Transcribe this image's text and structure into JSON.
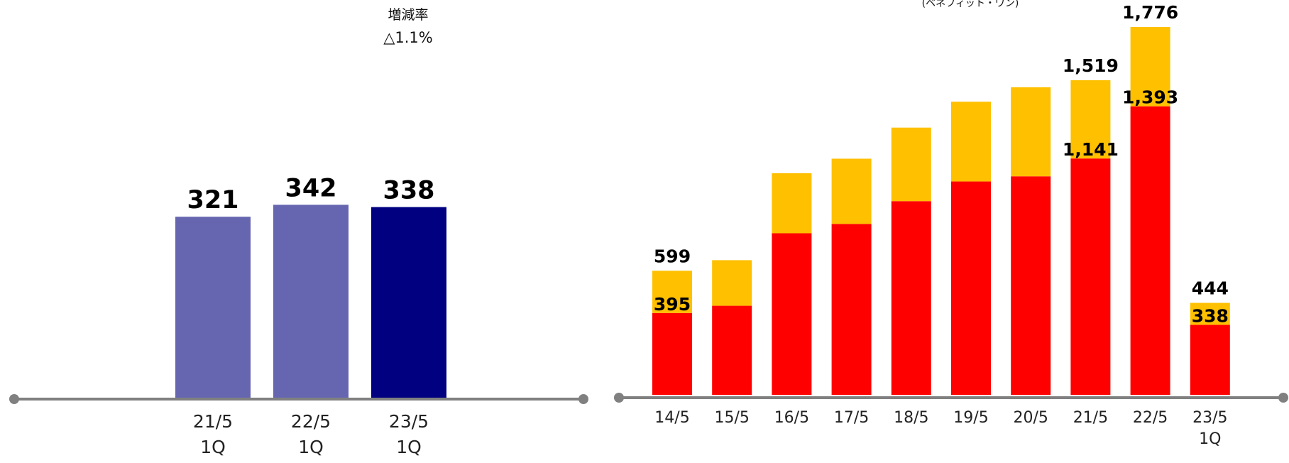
{
  "chart_data": [
    {
      "type": "bar",
      "categories": [
        [
          "21/5",
          "1Q"
        ],
        [
          "22/5",
          "1Q"
        ],
        [
          "23/5",
          "1Q"
        ]
      ],
      "values": [
        321,
        342,
        338
      ],
      "labels": [
        "321",
        "342",
        "338"
      ],
      "bar_colors": [
        "#6666b0",
        "#6666b0",
        "#000080"
      ],
      "annotation": {
        "title": "増減率",
        "value": "△1.1%"
      },
      "ylim": [
        0,
        420
      ]
    },
    {
      "type": "bar",
      "stacked": true,
      "categories": [
        [
          "14/5"
        ],
        [
          "15/5"
        ],
        [
          "16/5"
        ],
        [
          "17/5"
        ],
        [
          "18/5"
        ],
        [
          "19/5"
        ],
        [
          "20/5"
        ],
        [
          "21/5"
        ],
        [
          "22/5"
        ],
        [
          "23/5",
          "1Q"
        ]
      ],
      "series": [
        {
          "color": "#ff0000",
          "values": [
            395,
            430,
            780,
            825,
            935,
            1030,
            1055,
            1141,
            1393,
            338
          ]
        },
        {
          "color": "#ffc000",
          "values": [
            204,
            220,
            290,
            315,
            355,
            385,
            430,
            378,
            383,
            106
          ]
        }
      ],
      "totals": [
        599,
        650,
        1070,
        1140,
        1290,
        1415,
        1485,
        1519,
        1776,
        444
      ],
      "value_labels": [
        {
          "index": 0,
          "bottom": "395",
          "total": "599"
        },
        {
          "index": 7,
          "bottom": "1,141",
          "total": "1,519"
        },
        {
          "index": 8,
          "bottom": "1,393",
          "total": "1,776"
        },
        {
          "index": 9,
          "bottom": "338",
          "total": "444"
        }
      ],
      "header_fragment": "(ベネフィット・ワン)",
      "ylim": [
        0,
        2000
      ]
    }
  ]
}
